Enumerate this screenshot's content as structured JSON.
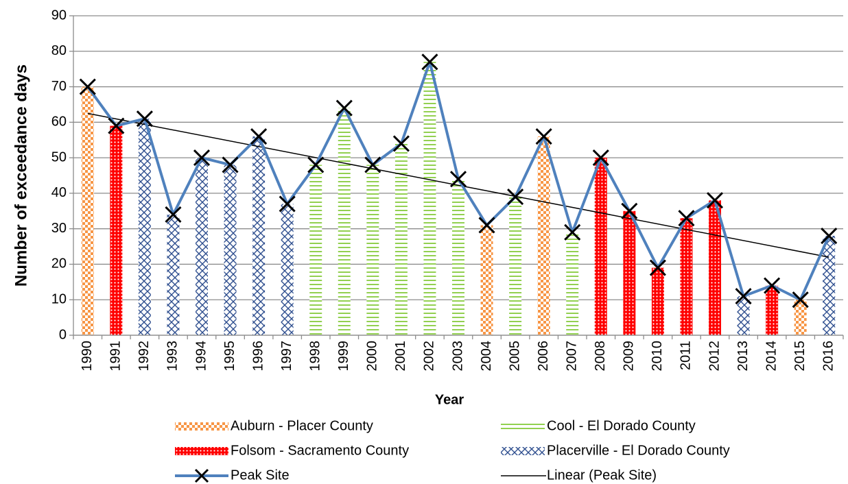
{
  "chart_data": {
    "type": "bar-line",
    "y_label": "Number of exceedance days",
    "x_label": "Year",
    "categories": [
      "1990",
      "1991",
      "1992",
      "1993",
      "1994",
      "1995",
      "1996",
      "1997",
      "1998",
      "1999",
      "2000",
      "2001",
      "2002",
      "2003",
      "2004",
      "2005",
      "2006",
      "2007",
      "2008",
      "2009",
      "2010",
      "2011",
      "2012",
      "2013",
      "2014",
      "2015",
      "2016"
    ],
    "series": [
      {
        "name": "Auburn - Placer County",
        "color": "#f79646",
        "pattern": "checker",
        "kind": "bar",
        "values": [
          70,
          null,
          null,
          null,
          null,
          null,
          null,
          null,
          null,
          null,
          null,
          null,
          null,
          null,
          31,
          null,
          56,
          null,
          null,
          null,
          null,
          null,
          null,
          null,
          null,
          10,
          null
        ]
      },
      {
        "name": "Cool - El Dorado County",
        "color": "#92d050",
        "pattern": "horizontal",
        "kind": "bar",
        "values": [
          null,
          null,
          null,
          null,
          null,
          null,
          null,
          null,
          48,
          64,
          48,
          54,
          77,
          44,
          null,
          39,
          null,
          29,
          null,
          null,
          null,
          null,
          null,
          null,
          null,
          null,
          null
        ]
      },
      {
        "name": "Folsom - Sacramento County",
        "color": "#ff0000",
        "pattern": "crosshatch",
        "kind": "bar",
        "values": [
          null,
          59,
          null,
          null,
          null,
          null,
          null,
          null,
          null,
          null,
          null,
          null,
          null,
          null,
          null,
          null,
          null,
          null,
          50,
          35,
          19,
          33,
          38,
          null,
          14,
          null,
          null
        ]
      },
      {
        "name": "Placerville - El Dorado County",
        "color": "#2f4f8f",
        "pattern": "zigzag",
        "kind": "bar",
        "values": [
          null,
          null,
          61,
          34,
          50,
          48,
          56,
          37,
          null,
          null,
          null,
          null,
          null,
          null,
          null,
          null,
          null,
          null,
          null,
          null,
          null,
          null,
          null,
          11,
          null,
          null,
          28
        ]
      },
      {
        "name": "Peak Site",
        "color": "#4f81bd",
        "kind": "line",
        "values": [
          70,
          59,
          61,
          34,
          50,
          48,
          56,
          37,
          48,
          64,
          48,
          54,
          77,
          44,
          31,
          39,
          56,
          29,
          50,
          35,
          19,
          33,
          38,
          11,
          14,
          10,
          28
        ]
      }
    ],
    "trend": {
      "name": "Linear (Peak Site)",
      "color": "#000000",
      "start": 62.5,
      "end": 22
    },
    "ylim": [
      0,
      90
    ],
    "yticks": [
      0,
      10,
      20,
      30,
      40,
      50,
      60,
      70,
      80,
      90
    ],
    "grid": true
  }
}
